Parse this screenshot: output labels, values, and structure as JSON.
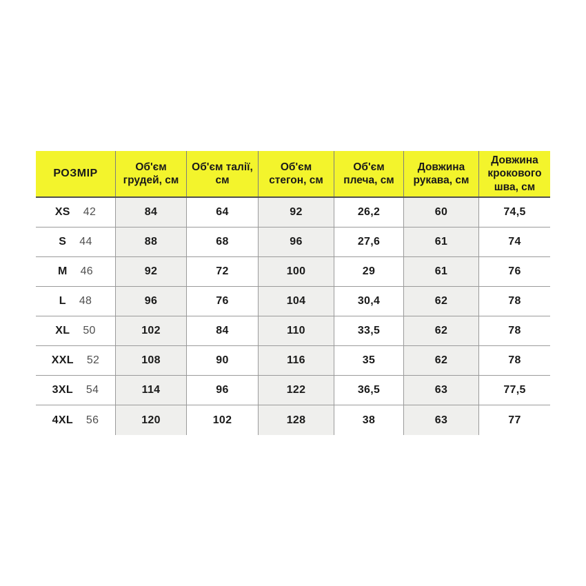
{
  "page": {
    "background": "#ffffff",
    "description_labels": {
      "table_kind": "size chart"
    }
  },
  "colors": {
    "header_bg": "#f3f42c",
    "shaded_column_bg": "#efefed",
    "grid_line": "#9a9a9a",
    "header_underline": "#4f4f4f",
    "text": "#1a1a1a",
    "size_number_text": "#4f4f4f"
  },
  "chart_data": {
    "type": "table",
    "title": "",
    "columns": [
      "РОЗМІР",
      "Об'єм грудей, см",
      "Об'єм талії, см",
      "Об'єм стегон, см",
      "Об'єм плеча, см",
      "Довжина рукава, см",
      "Довжина крокового шва, см"
    ],
    "rows": [
      {
        "size_label": "XS",
        "size_number": "42",
        "values": [
          "84",
          "64",
          "92",
          "26,2",
          "60",
          "74,5"
        ]
      },
      {
        "size_label": "S",
        "size_number": "44",
        "values": [
          "88",
          "68",
          "96",
          "27,6",
          "61",
          "74"
        ]
      },
      {
        "size_label": "M",
        "size_number": "46",
        "values": [
          "92",
          "72",
          "100",
          "29",
          "61",
          "76"
        ]
      },
      {
        "size_label": "L",
        "size_number": "48",
        "values": [
          "96",
          "76",
          "104",
          "30,4",
          "62",
          "78"
        ]
      },
      {
        "size_label": "XL",
        "size_number": "50",
        "values": [
          "102",
          "84",
          "110",
          "33,5",
          "62",
          "78"
        ]
      },
      {
        "size_label": "XXL",
        "size_number": "52",
        "values": [
          "108",
          "90",
          "116",
          "35",
          "62",
          "78"
        ]
      },
      {
        "size_label": "3XL",
        "size_number": "54",
        "values": [
          "114",
          "96",
          "122",
          "36,5",
          "63",
          "77,5"
        ]
      },
      {
        "size_label": "4XL",
        "size_number": "56",
        "values": [
          "120",
          "102",
          "128",
          "38",
          "63",
          "77"
        ]
      }
    ],
    "layout": {
      "shaded_columns": [
        "Об'єм грудей, см",
        "Об'єм стегон, см",
        "Довжина рукава, см"
      ],
      "grid": "internal lines only, no outer border",
      "header_style": "yellow background, bold black text"
    }
  }
}
